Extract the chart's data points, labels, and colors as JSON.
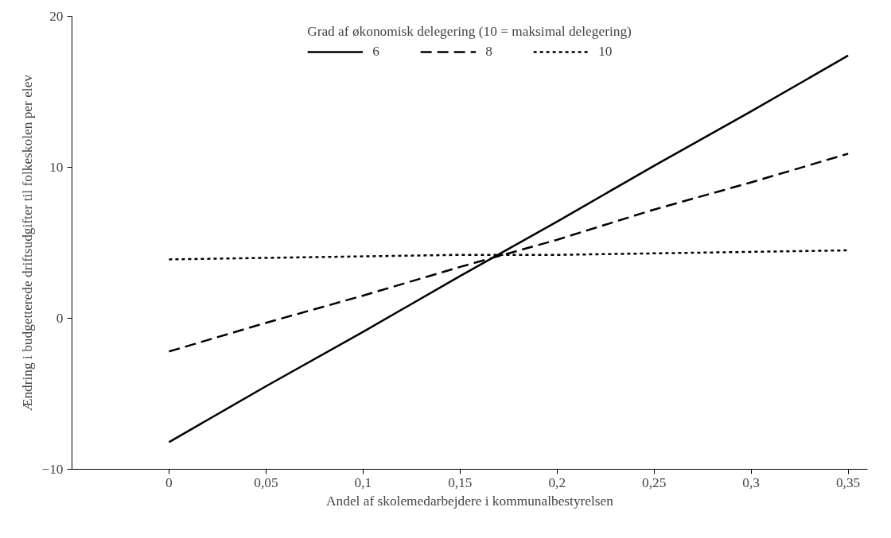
{
  "chart_data": {
    "type": "line",
    "xlabel": "Andel af skolemedarbejdere i kommunalbestyrelsen",
    "ylabel": "Ændring i budgetterede driftsudgifter til folkeskolen per elev",
    "legend_title": "Grad af økonomisk delegering (10 = maksimal delegering)",
    "x": [
      0,
      0.05,
      0.1,
      0.15,
      0.2,
      0.25,
      0.3,
      0.35
    ],
    "series": [
      {
        "name": "6",
        "color": "#000000",
        "line_style": "solid",
        "values": [
          -8.2,
          -4.5,
          -0.9,
          2.8,
          6.4,
          10.1,
          13.7,
          17.4
        ]
      },
      {
        "name": "8",
        "color": "#000000",
        "line_style": "dashed",
        "values": [
          -2.2,
          -0.3,
          1.5,
          3.4,
          5.2,
          7.2,
          9.0,
          10.9
        ]
      },
      {
        "name": "10",
        "color": "#000000",
        "line_style": "dotted",
        "values": [
          3.9,
          4.0,
          4.1,
          4.2,
          4.2,
          4.3,
          4.4,
          4.5
        ]
      }
    ],
    "xlim": [
      -0.05,
      0.36
    ],
    "xticks": [
      0,
      {
        "value": 0.05,
        "label": "0,05"
      },
      {
        "value": 0.1,
        "label": "0,1"
      },
      {
        "value": 0.15,
        "label": "0,15"
      },
      {
        "value": 0.2,
        "label": "0,2"
      },
      {
        "value": 0.25,
        "label": "0,25"
      },
      {
        "value": 0.3,
        "label": "0,3"
      },
      {
        "value": 0.35,
        "label": "0,35"
      }
    ],
    "ylim": [
      -10,
      20
    ],
    "yticks": [
      -10,
      0,
      10,
      20
    ],
    "grid": false,
    "legend": "top",
    "marker": "none"
  }
}
